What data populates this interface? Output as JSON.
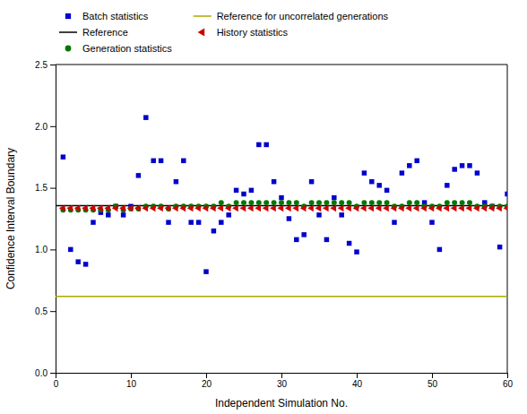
{
  "chart_data": {
    "type": "scatter",
    "xlabel": "Independent Simulation No.",
    "ylabel": "Confidence Interval Boundary",
    "xlim": [
      0,
      60
    ],
    "ylim": [
      0.0,
      2.5
    ],
    "xticks": [
      0,
      10,
      20,
      30,
      40,
      50,
      60
    ],
    "yticks": [
      {
        "value": 0.0,
        "label": "0.0"
      },
      0.5,
      {
        "value": 1.0,
        "label": "1.0"
      },
      1.5,
      {
        "value": 2.0,
        "label": "2.0"
      },
      2.5
    ],
    "grid": false,
    "legend": "upper left",
    "series": [
      {
        "name": "Batch statistics",
        "type": "scatter",
        "marker": "square",
        "color": "#0000cc",
        "x": [
          1,
          2,
          3,
          4,
          5,
          6,
          7,
          8,
          9,
          10,
          11,
          12,
          13,
          14,
          15,
          16,
          17,
          18,
          19,
          20,
          21,
          22,
          23,
          24,
          25,
          26,
          27,
          28,
          29,
          30,
          31,
          32,
          33,
          34,
          35,
          36,
          37,
          38,
          39,
          40,
          41,
          42,
          43,
          44,
          45,
          46,
          47,
          48,
          49,
          50,
          51,
          52,
          53,
          54,
          55,
          56,
          57,
          58,
          59,
          60
        ],
        "values": [
          1.75,
          1.0,
          0.9,
          0.88,
          1.22,
          1.3,
          1.28,
          1.35,
          1.28,
          1.35,
          1.6,
          2.07,
          1.72,
          1.72,
          1.22,
          1.55,
          1.72,
          1.22,
          1.22,
          0.82,
          1.15,
          1.22,
          1.28,
          1.48,
          1.45,
          1.48,
          1.85,
          1.85,
          1.55,
          1.42,
          1.25,
          1.08,
          1.12,
          1.55,
          1.28,
          1.08,
          1.42,
          1.28,
          1.05,
          0.98,
          1.62,
          1.55,
          1.52,
          1.48,
          1.22,
          1.62,
          1.68,
          1.72,
          1.38,
          1.22,
          1.0,
          1.52,
          1.65,
          1.68,
          1.68,
          1.62,
          1.38,
          1.35,
          1.02,
          1.45
        ]
      },
      {
        "name": "Reference",
        "type": "hline",
        "line_style": "solid",
        "color": "#000000",
        "values": [
          1.355
        ]
      },
      {
        "name": "Generation statistics",
        "type": "scatter",
        "marker": "circle",
        "color": "#007700",
        "x": [
          1,
          2,
          3,
          4,
          5,
          6,
          7,
          8,
          9,
          10,
          11,
          12,
          13,
          14,
          15,
          16,
          17,
          18,
          19,
          20,
          21,
          22,
          23,
          24,
          25,
          26,
          27,
          28,
          29,
          30,
          31,
          32,
          33,
          34,
          35,
          36,
          37,
          38,
          39,
          40,
          41,
          42,
          43,
          44,
          45,
          46,
          47,
          48,
          49,
          50,
          51,
          52,
          53,
          54,
          55,
          56,
          57,
          58,
          59,
          60
        ],
        "values": [
          1.32,
          1.32,
          1.32,
          1.32,
          1.32,
          1.32,
          1.32,
          1.35,
          1.32,
          1.33,
          1.33,
          1.35,
          1.35,
          1.35,
          1.33,
          1.35,
          1.35,
          1.35,
          1.35,
          1.35,
          1.35,
          1.38,
          1.35,
          1.38,
          1.38,
          1.38,
          1.38,
          1.38,
          1.38,
          1.38,
          1.38,
          1.38,
          1.35,
          1.38,
          1.38,
          1.38,
          1.38,
          1.38,
          1.38,
          1.35,
          1.38,
          1.38,
          1.38,
          1.38,
          1.35,
          1.35,
          1.38,
          1.38,
          1.35,
          1.35,
          1.35,
          1.38,
          1.38,
          1.38,
          1.38,
          1.35,
          1.35,
          1.35,
          1.35,
          1.35
        ]
      },
      {
        "name": "Reference for uncorrelated generations",
        "type": "hline",
        "line_style": "solid",
        "color": "#aaaa00",
        "values": [
          0.62
        ]
      },
      {
        "name": "History statistics",
        "type": "scatter",
        "marker": "triangle-left",
        "color": "#cc0000",
        "x": [
          1,
          2,
          3,
          4,
          5,
          6,
          7,
          8,
          9,
          10,
          11,
          12,
          13,
          14,
          15,
          16,
          17,
          18,
          19,
          20,
          21,
          22,
          23,
          24,
          25,
          26,
          27,
          28,
          29,
          30,
          31,
          32,
          33,
          34,
          35,
          36,
          37,
          38,
          39,
          40,
          41,
          42,
          43,
          44,
          45,
          46,
          47,
          48,
          49,
          50,
          51,
          52,
          53,
          54,
          55,
          56,
          57,
          58,
          59,
          60
        ],
        "values": [
          1.335,
          1.335,
          1.335,
          1.335,
          1.335,
          1.335,
          1.335,
          1.335,
          1.335,
          1.335,
          1.335,
          1.335,
          1.335,
          1.335,
          1.335,
          1.335,
          1.335,
          1.335,
          1.335,
          1.335,
          1.335,
          1.335,
          1.335,
          1.335,
          1.335,
          1.335,
          1.335,
          1.335,
          1.335,
          1.335,
          1.335,
          1.335,
          1.335,
          1.335,
          1.335,
          1.335,
          1.335,
          1.335,
          1.335,
          1.335,
          1.335,
          1.335,
          1.335,
          1.335,
          1.335,
          1.335,
          1.335,
          1.335,
          1.335,
          1.335,
          1.335,
          1.335,
          1.335,
          1.335,
          1.335,
          1.335,
          1.335,
          1.335,
          1.335,
          1.335
        ]
      }
    ]
  }
}
